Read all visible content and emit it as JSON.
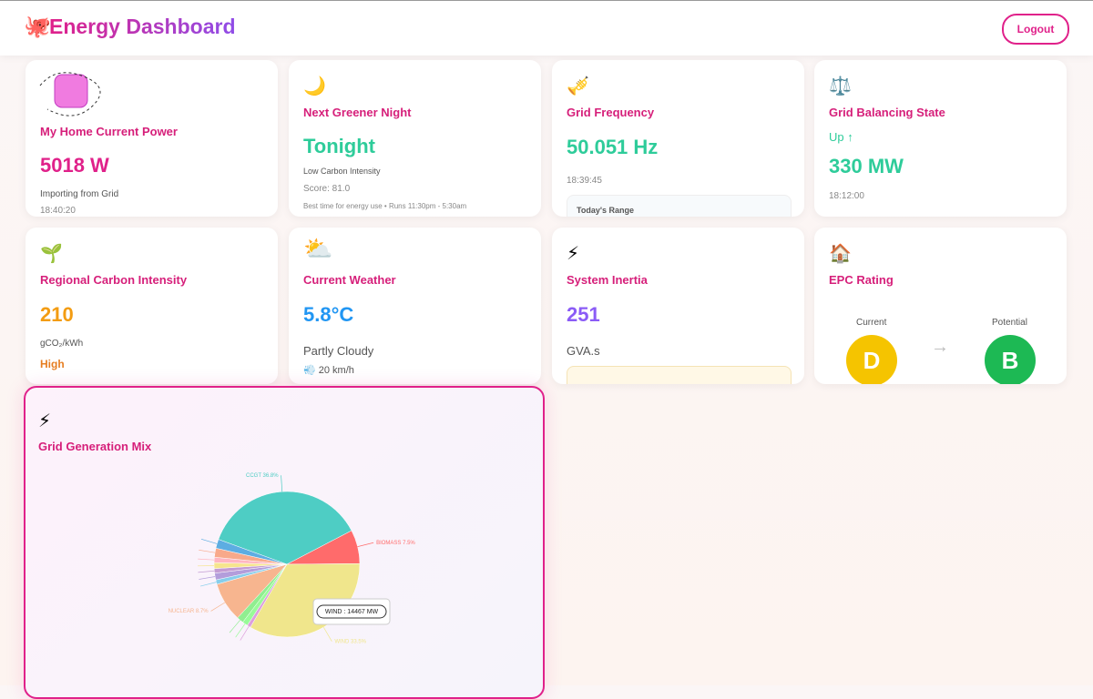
{
  "header": {
    "logo": "🐙",
    "title": "Energy Dashboard",
    "logout": "Logout"
  },
  "cards": [
    {
      "title": "My Home Current Power",
      "value": "5018 W",
      "lines": [
        "Importing from Grid",
        "18:40:20"
      ]
    },
    {
      "icon": "🌙",
      "title": "Next Greener Night",
      "value": "Tonight",
      "lines": [
        "Low Carbon Intensity",
        "Score: 81.0",
        "Best time for energy use • Runs 11:30pm - 5:30am"
      ]
    },
    {
      "icon": "🎺",
      "title": "Grid Frequency",
      "value": "50.051 Hz",
      "lines": [
        "18:39:45",
        "Today's Range"
      ]
    },
    {
      "icon": "⚖️",
      "title": "Grid Balancing State",
      "status": "Up ↑",
      "value": "330 MW",
      "lines": [
        "18:12:00"
      ]
    },
    {
      "icon": "🌱",
      "title": "Regional Carbon Intensity",
      "value": "210",
      "lines": [
        "gCO₂/kWh",
        "High"
      ]
    },
    {
      "icon": "⛅",
      "title": "Current Weather",
      "value": "5.8°C",
      "lines": [
        "Partly Cloudy",
        "💨 20 km/h"
      ]
    },
    {
      "icon": "⚡",
      "title": "System Inertia",
      "value": "251",
      "lines": [
        "GVA.s"
      ]
    },
    {
      "icon": "🏠",
      "title": "EPC Rating",
      "current_label": "Current",
      "potential_label": "Potential",
      "arrow": "→",
      "current": "D",
      "potential": "B"
    }
  ],
  "chart_icon": "⚡",
  "chart_data": {
    "type": "pie",
    "title": "Grid Generation Mix",
    "categories": [
      "CCGT",
      "BIOMASS",
      "WIND",
      null,
      null,
      null,
      "NUCLEAR",
      null,
      null,
      null,
      null,
      null,
      null,
      null
    ],
    "values": [
      36.8,
      7.5,
      33.5,
      0.8,
      1.2,
      1.5,
      8.7,
      1.0,
      1.5,
      1.0,
      1.3,
      1.2,
      2.0,
      2.0
    ],
    "value_labels": [
      "CCGT 36.8%",
      "BIOMASS 7.5%",
      "WIND 33.5%",
      null,
      null,
      null,
      "NUCLEAR 8.7%",
      null,
      null,
      null,
      null,
      null,
      null,
      null
    ],
    "colors": [
      "#4ecdc4",
      "#ff6b6b",
      "#f0e68c",
      "#dda0dd",
      "#98fb98",
      "#90ee90",
      "#f7b58f",
      "#87ceeb",
      "#b39ddb",
      "#c39bd3",
      "#f6e58d",
      "#ffb6c1",
      "#f8a98b",
      "#5dade2"
    ],
    "tooltip": "WIND : 14467 MW"
  }
}
